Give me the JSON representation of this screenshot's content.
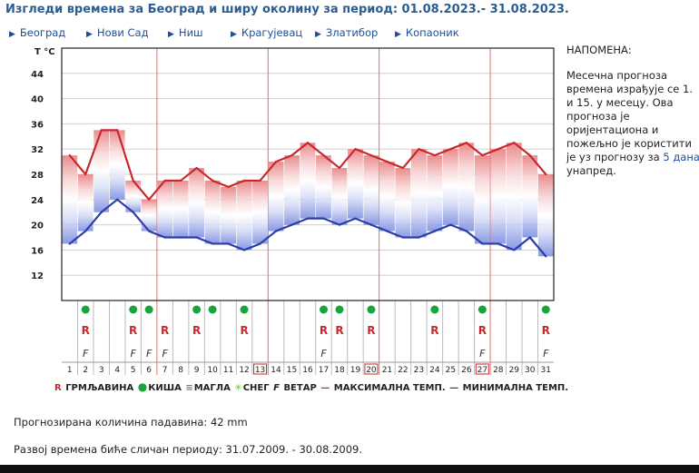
{
  "header": {
    "title": "Изгледи времена за Београд и ширу околину за период: 01.08.2023.- 31.08.2023."
  },
  "cities": [
    "Београд",
    "Нови Сад",
    "Ниш",
    "Крагујевац",
    "Златибор",
    "Копаоник"
  ],
  "note": {
    "heading": "НАПОМЕНА:",
    "text_before": "Месечна прогноза времена израђује се 1. и 15. у месецу. Ова прогноза је оријентациона и пожељно је користити је уз прогнозу за",
    "link": "5 дана",
    "text_after": "унапред."
  },
  "chart_data": {
    "type": "line",
    "ylabel": "T °C",
    "y_ticks": [
      12,
      16,
      20,
      24,
      28,
      32,
      36,
      40,
      44
    ],
    "ylim": [
      8,
      48
    ],
    "x": [
      1,
      2,
      3,
      4,
      5,
      6,
      7,
      8,
      9,
      10,
      11,
      12,
      13,
      14,
      15,
      16,
      17,
      18,
      19,
      20,
      21,
      22,
      23,
      24,
      25,
      26,
      27,
      28,
      29,
      30,
      31
    ],
    "series": [
      {
        "name": "МАКСИМАЛНА ТЕМП.",
        "color": "#c8282d",
        "values": [
          31,
          28,
          35,
          35,
          27,
          24,
          27,
          27,
          29,
          27,
          26,
          27,
          27,
          30,
          31,
          33,
          31,
          29,
          32,
          31,
          30,
          29,
          32,
          31,
          32,
          33,
          31,
          32,
          33,
          31,
          28
        ]
      },
      {
        "name": "МИНИМАЛНА ТЕМП.",
        "color": "#2c3da8",
        "values": [
          17,
          19,
          22,
          24,
          22,
          19,
          18,
          18,
          18,
          17,
          17,
          16,
          17,
          19,
          20,
          21,
          21,
          20,
          21,
          20,
          19,
          18,
          18,
          19,
          20,
          19,
          17,
          17,
          16,
          18,
          15
        ]
      }
    ],
    "grid": true,
    "red_vertical_lines_at_day": [
      7,
      14,
      21,
      28
    ],
    "events": {
      "rain": [
        2,
        5,
        6,
        9,
        10,
        12,
        17,
        18,
        20,
        24,
        27,
        31
      ],
      "thunderstorm": [
        2,
        5,
        7,
        9,
        12,
        17,
        18,
        20,
        24,
        27,
        31
      ],
      "wind": [
        2,
        5,
        6,
        7,
        17,
        27,
        31
      ]
    },
    "highlighted_days": [
      13,
      20,
      27
    ],
    "legend": [
      "ГРМЉАВИНА",
      "КИША",
      "МАГЛА",
      "СНЕГ",
      "ВЕТАР",
      "МАКСИМАЛНА ТЕМП.",
      "МИНИМАЛНА ТЕМП."
    ]
  },
  "legend": {
    "thunder_glyph": "R",
    "thunder": "ГРМЉАВИНА",
    "rain": "КИША",
    "fog": "МАГЛА",
    "snow": "СНЕГ",
    "wind_glyph": "F",
    "wind": "ВЕТАР",
    "max": "МАКСИМАЛНА ТЕМП.",
    "min": "МИНИМАЛНА ТЕМП."
  },
  "precipitation": {
    "label": "Прогнозирана количина падавина:",
    "value": "42",
    "unit": "mm"
  },
  "similar_period": "Развој времена биће сличан периоду: 31.07.2009. - 30.08.2009."
}
